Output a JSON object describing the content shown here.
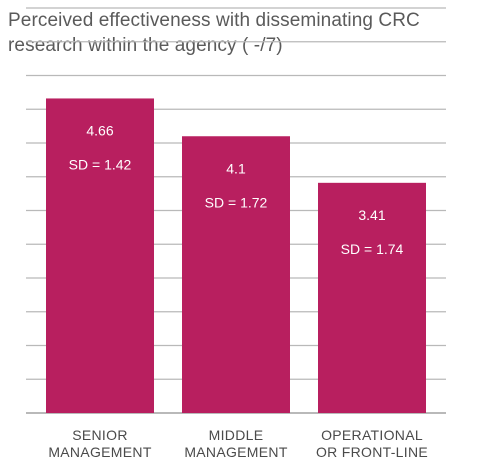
{
  "title_lines": [
    "Perceived effectiveness with disseminating CRC",
    "research within the agency ( -/7)"
  ],
  "chart_data": {
    "type": "bar",
    "title": "Perceived effectiveness with disseminating CRC research within the agency ( -/7)",
    "categories": [
      [
        "SENIOR",
        "MANAGEMENT"
      ],
      [
        "MIDDLE",
        "MANAGEMENT"
      ],
      [
        "OPERATIONAL",
        "OR FRONT-LINE"
      ]
    ],
    "values": [
      4.66,
      4.1,
      3.41
    ],
    "value_labels": [
      "4.66",
      "4.1",
      "3.41"
    ],
    "sd_labels": [
      "SD = 1.42",
      "SD = 1.72",
      "SD = 1.74"
    ],
    "ylim": [
      0,
      7
    ],
    "grid": true,
    "bar_color": "#b81f5f",
    "grid_color": "#b9b9b9",
    "xlabel": "",
    "ylabel": ""
  }
}
